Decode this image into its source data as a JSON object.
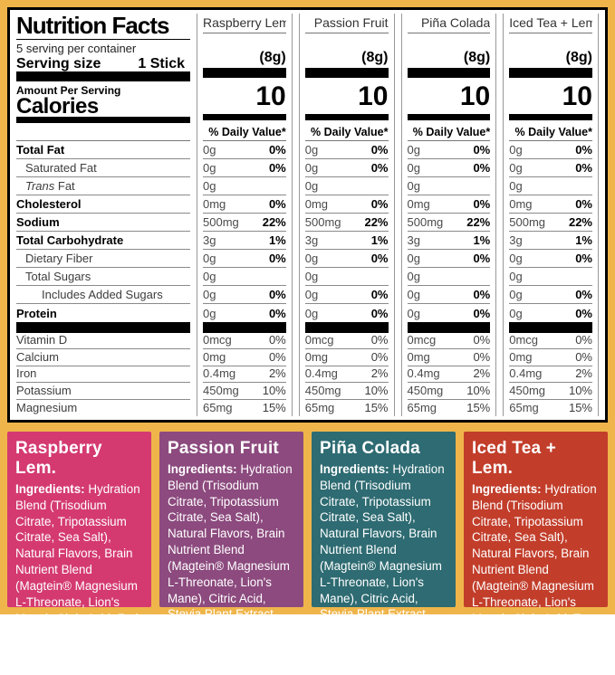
{
  "colors": {
    "frame_background": "#EFB54A",
    "table_background": "#FFFFFF",
    "table_border": "#000000",
    "panel_raspberry": "#D43A70",
    "panel_passion": "#8C4A7E",
    "panel_pina": "#2E6B72",
    "panel_iced": "#C23E2B",
    "panel_text": "#FFFFFF"
  },
  "table": {
    "title": "Nutrition Facts",
    "servings_per_container": "5 serving per container",
    "serving_size_label": "Serving size",
    "serving_size_value": "1 Stick",
    "amount_per_serving": "Amount Per Serving",
    "calories_label": "Calories",
    "daily_value_header": "% Daily Value*",
    "columns": [
      {
        "name": "Raspberry Lem.",
        "serving_weight": "(8g)",
        "calories": "10"
      },
      {
        "name": "Passion Fruit",
        "serving_weight": "(8g)",
        "calories": "10"
      },
      {
        "name": "Piña Colada",
        "serving_weight": "(8g)",
        "calories": "10"
      },
      {
        "name": "Iced Tea + Lem.",
        "serving_weight": "(8g)",
        "calories": "10"
      }
    ],
    "rows": [
      {
        "label": "Total Fat",
        "bold": true,
        "indent": 0,
        "italic_first_word": false,
        "amounts": [
          "0g",
          "0g",
          "0g",
          "0g"
        ],
        "dvs": [
          "0%",
          "0%",
          "0%",
          "0%"
        ]
      },
      {
        "label": "Saturated Fat",
        "bold": false,
        "indent": 1,
        "italic_first_word": false,
        "amounts": [
          "0g",
          "0g",
          "0g",
          "0g"
        ],
        "dvs": [
          "0%",
          "0%",
          "0%",
          "0%"
        ]
      },
      {
        "label": "Trans Fat",
        "bold": false,
        "indent": 1,
        "italic_first_word": true,
        "amounts": [
          "0g",
          "0g",
          "0g",
          "0g"
        ],
        "dvs": [
          "",
          "",
          "",
          ""
        ]
      },
      {
        "label": "Cholesterol",
        "bold": true,
        "indent": 0,
        "italic_first_word": false,
        "amounts": [
          "0mg",
          "0mg",
          "0mg",
          "0mg"
        ],
        "dvs": [
          "0%",
          "0%",
          "0%",
          "0%"
        ]
      },
      {
        "label": "Sodium",
        "bold": true,
        "indent": 0,
        "italic_first_word": false,
        "amounts": [
          "500mg",
          "500mg",
          "500mg",
          "500mg"
        ],
        "dvs": [
          "22%",
          "22%",
          "22%",
          "22%"
        ]
      },
      {
        "label": "Total Carbohydrate",
        "bold": true,
        "indent": 0,
        "italic_first_word": false,
        "amounts": [
          "3g",
          "3g",
          "3g",
          "3g"
        ],
        "dvs": [
          "1%",
          "1%",
          "1%",
          "1%"
        ]
      },
      {
        "label": "Dietary Fiber",
        "bold": false,
        "indent": 1,
        "italic_first_word": false,
        "amounts": [
          "0g",
          "0g",
          "0g",
          "0g"
        ],
        "dvs": [
          "0%",
          "0%",
          "0%",
          "0%"
        ]
      },
      {
        "label": "Total Sugars",
        "bold": false,
        "indent": 1,
        "italic_first_word": false,
        "amounts": [
          "0g",
          "0g",
          "0g",
          "0g"
        ],
        "dvs": [
          "",
          "",
          "",
          ""
        ]
      },
      {
        "label": "Includes Added Sugars",
        "bold": false,
        "indent": 2,
        "italic_first_word": false,
        "amounts": [
          "0g",
          "0g",
          "0g",
          "0g"
        ],
        "dvs": [
          "0%",
          "0%",
          "0%",
          "0%"
        ]
      },
      {
        "label": "Protein",
        "bold": true,
        "indent": 0,
        "italic_first_word": false,
        "amounts": [
          "0g",
          "0g",
          "0g",
          "0g"
        ],
        "dvs": [
          "0%",
          "0%",
          "0%",
          "0%"
        ]
      }
    ],
    "vitamin_rows": [
      {
        "label": "Vitamin D",
        "amounts": [
          "0mcg",
          "0mcg",
          "0mcg",
          "0mcg"
        ],
        "dvs": [
          "0%",
          "0%",
          "0%",
          "0%"
        ]
      },
      {
        "label": "Calcium",
        "amounts": [
          "0mg",
          "0mg",
          "0mg",
          "0mg"
        ],
        "dvs": [
          "0%",
          "0%",
          "0%",
          "0%"
        ]
      },
      {
        "label": "Iron",
        "amounts": [
          "0.4mg",
          "0.4mg",
          "0.4mg",
          "0.4mg"
        ],
        "dvs": [
          "2%",
          "2%",
          "2%",
          "2%"
        ]
      },
      {
        "label": "Potassium",
        "amounts": [
          "450mg",
          "450mg",
          "450mg",
          "450mg"
        ],
        "dvs": [
          "10%",
          "10%",
          "10%",
          "10%"
        ]
      },
      {
        "label": "Magnesium",
        "amounts": [
          "65mg",
          "65mg",
          "65mg",
          "65mg"
        ],
        "dvs": [
          "15%",
          "15%",
          "15%",
          "15%"
        ]
      }
    ]
  },
  "panels": [
    {
      "title": "Raspberry Lem.",
      "ingredients_label": "Ingredients:",
      "ingredients": "Hydration Blend (Trisodium Citrate, Tripotassium Citrate, Sea Salt), Natural Flavors, Brain Nutrient Blend (Magtein® Magnesium L-Threonate, Lion's Mane), Citric Acid, Fruit and Vegetable Juice (For Color), Stevia Plant Extract",
      "color": "#D43A70"
    },
    {
      "title": "Passion Fruit",
      "ingredients_label": "Ingredients:",
      "ingredients": "Hydration Blend (Trisodium Citrate, Tripotassium Citrate, Sea Salt), Natural Flavors, Brain Nutrient Blend (Magtein® Magnesium L-Threonate, Lion's Mane), Citric Acid, Stevia Plant Extract, Beta Carotene",
      "color": "#8C4A7E"
    },
    {
      "title": "Piña Colada",
      "ingredients_label": "Ingredients:",
      "ingredients": "Hydration Blend (Trisodium Citrate, Tripotassium Citrate, Sea Salt), Natural Flavors, Brain Nutrient Blend (Magtein® Magnesium L-Threonate, Lion's Mane), Citric Acid, Stevia Plant Extract, Beta Carotene",
      "color": "#2E6B72"
    },
    {
      "title": "Iced Tea + Lem.",
      "ingredients_label": "Ingredients:",
      "ingredients": "Hydration Blend (Trisodium Citrate, Tripotassium Citrate, Sea Salt), Natural Flavors, Brain Nutrient Blend (Magtein® Magnesium L-Threonate, Lion's Mane), Citric Acid, Tea, Stevia Plant Extract",
      "color": "#C23E2B"
    }
  ]
}
